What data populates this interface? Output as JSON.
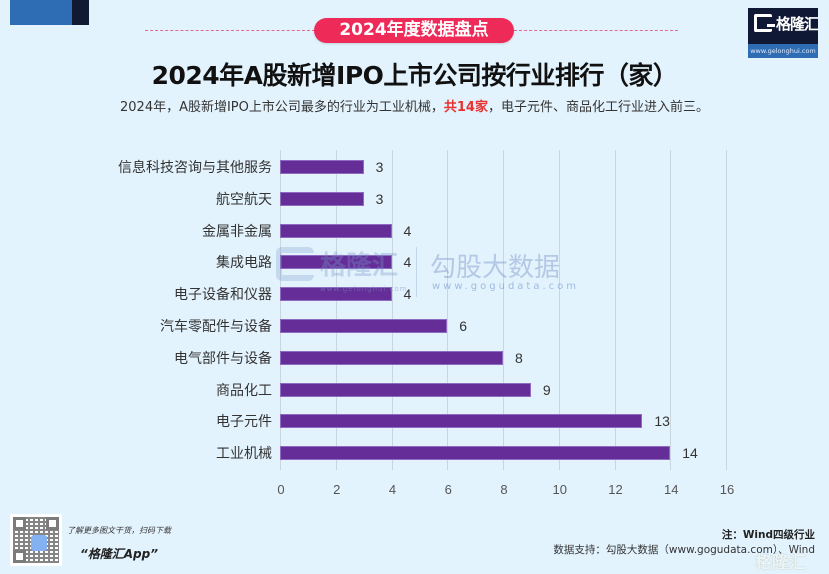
{
  "header": {
    "badge": "2024年度数据盘点",
    "title": "2024年A股新增IPO上市公司按行业排行（家）",
    "subtitle_pre": "2024年，A股新增IPO上市公司最多的行业为工业机械，",
    "subtitle_highlight": "共14家",
    "subtitle_post": "，电子元件、商品化工行业进入前三。"
  },
  "logo": {
    "name": "格隆汇",
    "url": "www.gelonghui.com"
  },
  "watermark": {
    "brand1": "格隆汇",
    "url1": "www.gelonghui.com",
    "brand2": "勾股大数据",
    "url2": "www.gogudata.com"
  },
  "colors": {
    "background": "#e3f3fd",
    "bar": "#652d98",
    "badge": "#ee2b58",
    "highlight": "#e8322f",
    "logo_dark": "#0f1935",
    "logo_blue": "#2e6db4"
  },
  "chart_data": {
    "type": "bar",
    "orientation": "horizontal",
    "title": "2024年A股新增IPO上市公司按行业排行（家）",
    "xlabel": "",
    "ylabel": "",
    "categories": [
      "信息科技咨询与其他服务",
      "航空航天",
      "金属非金属",
      "集成电路",
      "电子设备和仪器",
      "汽车零配件与设备",
      "电气部件与设备",
      "商品化工",
      "电子元件",
      "工业机械"
    ],
    "values": [
      3,
      3,
      4,
      4,
      4,
      6,
      8,
      9,
      13,
      14
    ],
    "value_labels": [
      "3",
      "3",
      "4",
      "4",
      "4",
      "6",
      "8",
      "9",
      "13",
      "14"
    ],
    "xlim": [
      0,
      16
    ],
    "xticks": [
      "0",
      "2",
      "4",
      "6",
      "8",
      "10",
      "12",
      "14",
      "16"
    ],
    "grid": true,
    "legend": "none",
    "series_color": "#652d98"
  },
  "footer": {
    "qr_caption": "了解更多图文干货，扫码下载",
    "app_name": "“格隆汇App”",
    "note": "注：Wind四级行业",
    "source": "数据支持：勾股大数据（www.gogudata.com）、Wind",
    "bottom_logo": "格隆汇"
  }
}
